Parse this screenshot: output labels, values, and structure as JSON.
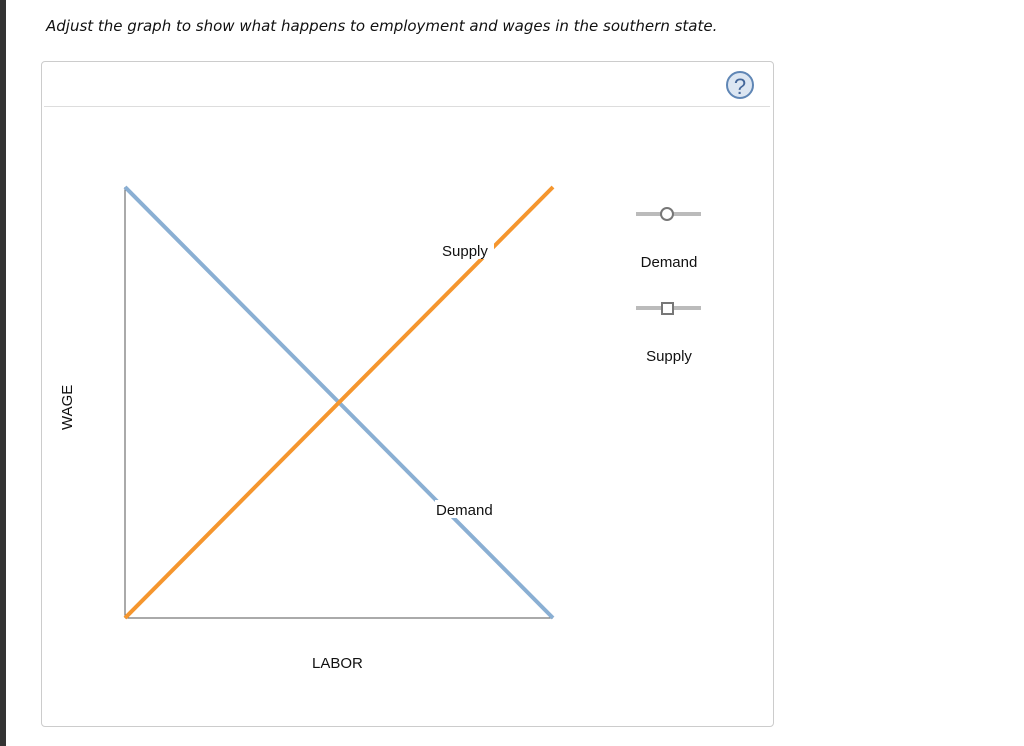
{
  "prompt": "Adjust the graph to show what happens to employment and wages in the southern state.",
  "help_icon": "question-circle-icon",
  "colors": {
    "demand": "#8aafd3",
    "supply": "#f5962e",
    "axis": "#555"
  },
  "chart_data": {
    "type": "line",
    "xlabel": "LABOR",
    "ylabel": "WAGE",
    "xlim": [
      0,
      100
    ],
    "ylim": [
      0,
      100
    ],
    "grid": false,
    "series": [
      {
        "name": "Demand",
        "x": [
          0,
          100
        ],
        "y": [
          100,
          0
        ]
      },
      {
        "name": "Supply",
        "x": [
          0,
          100
        ],
        "y": [
          0,
          100
        ]
      }
    ]
  },
  "legend": {
    "demand_label": "Demand",
    "supply_label": "Supply",
    "demand_marker": "circle",
    "supply_marker": "square"
  }
}
